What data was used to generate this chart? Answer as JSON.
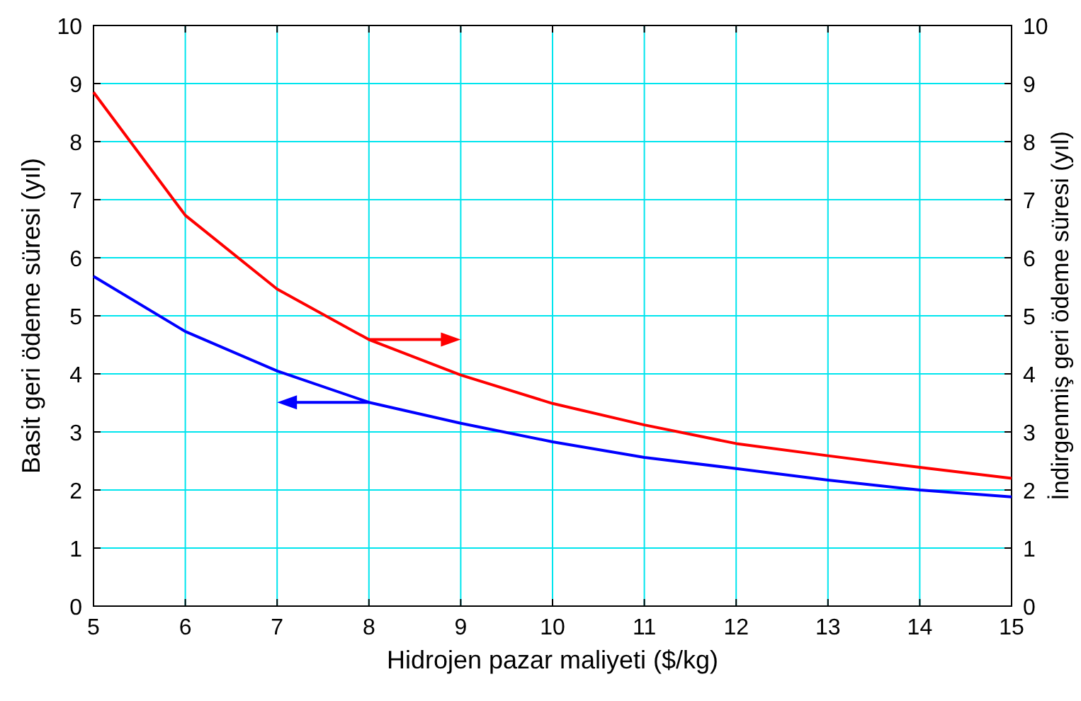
{
  "chart_data": {
    "type": "line",
    "xlabel": "Hidrojen pazar maliyeti ($/kg)",
    "ylabel": "Basit geri ödeme süresi (yıl)",
    "y2label": "İndirgenmiş geri ödeme süresi (yıl)",
    "x": [
      5,
      6,
      7,
      8,
      9,
      10,
      11,
      12,
      13,
      14,
      15
    ],
    "series": [
      {
        "color": "#0000ff",
        "values": [
          5.68,
          4.73,
          4.05,
          3.51,
          3.15,
          2.83,
          2.56,
          2.37,
          2.17,
          2.0,
          1.88
        ]
      },
      {
        "color": "#ff0000",
        "axis": "y2",
        "values": [
          8.85,
          6.73,
          5.46,
          4.59,
          3.98,
          3.49,
          3.12,
          2.8,
          2.59,
          2.39,
          2.2
        ]
      }
    ],
    "xlim": [
      5,
      15
    ],
    "xticks": [
      5,
      6,
      7,
      8,
      9,
      10,
      11,
      12,
      13,
      14,
      15
    ],
    "ylim": [
      0,
      10
    ],
    "yticks": [
      0,
      1,
      2,
      3,
      4,
      5,
      6,
      7,
      8,
      9,
      10
    ],
    "y2lim": [
      0,
      10
    ],
    "y2ticks": [
      0,
      1,
      2,
      3,
      4,
      5,
      6,
      7,
      8,
      9,
      10
    ],
    "grid": true,
    "line_style": "solid",
    "marker": "none"
  }
}
